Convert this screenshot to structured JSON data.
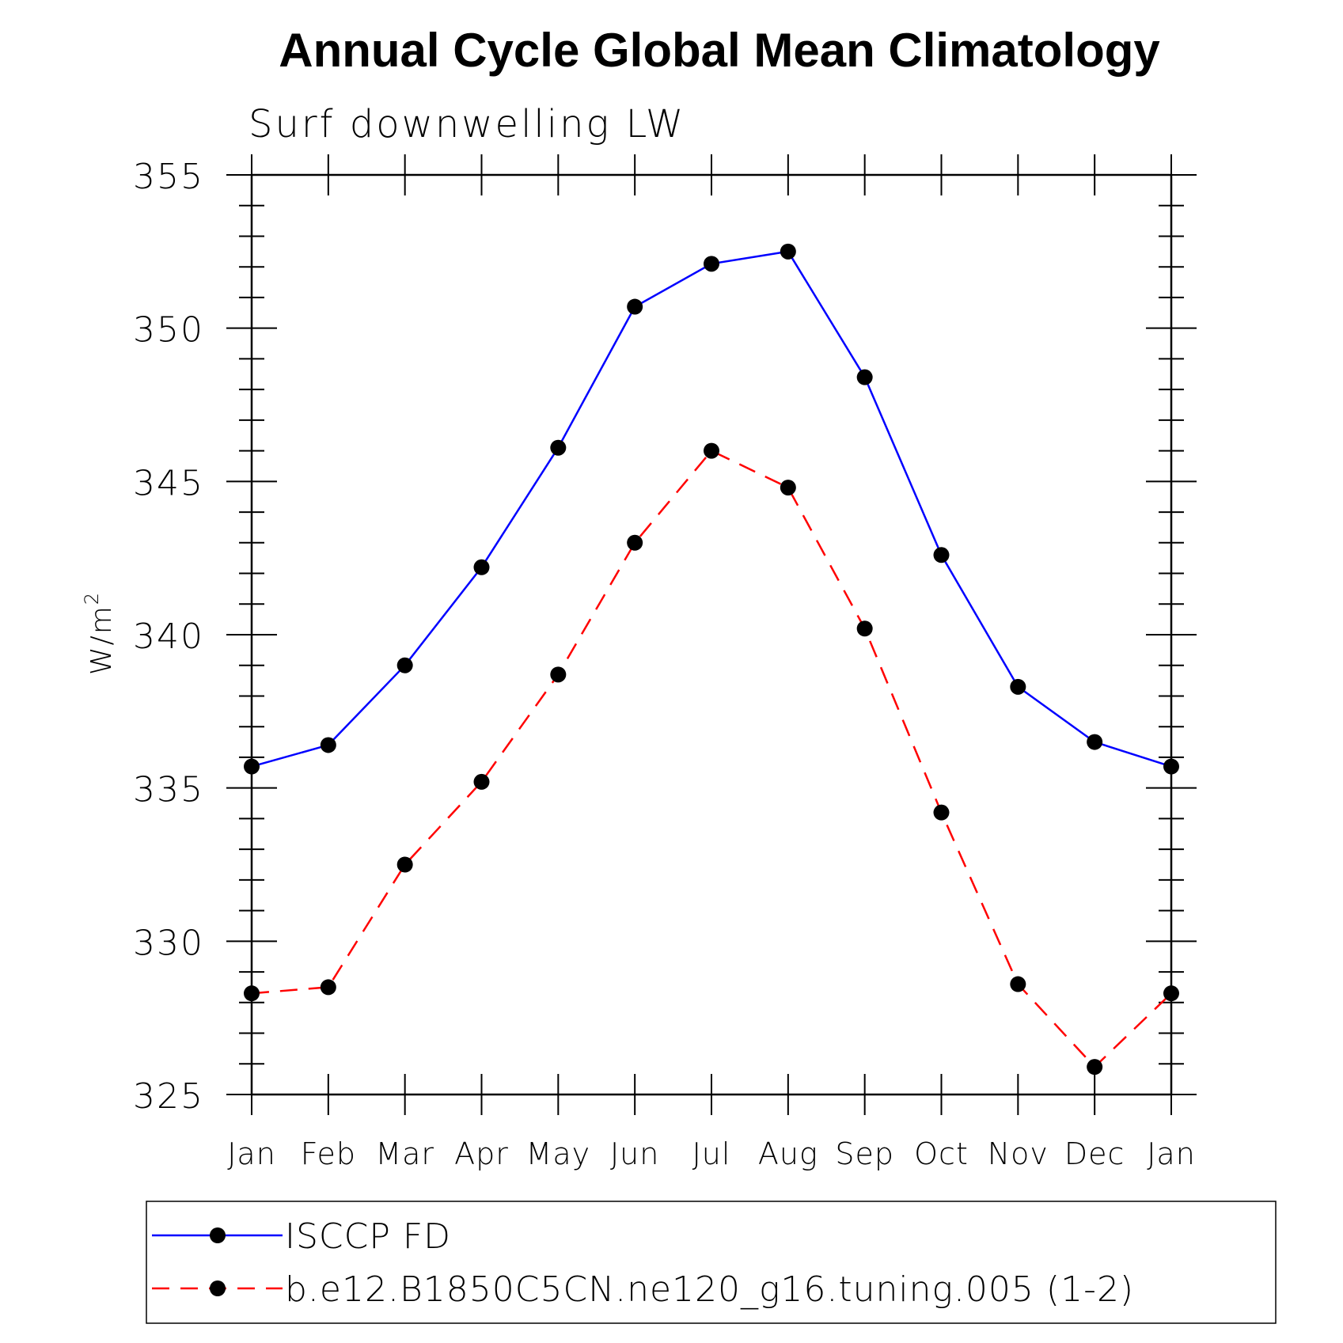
{
  "chart_data": {
    "type": "line",
    "title": "Annual Cycle Global Mean Climatology",
    "subtitle": "Surf downwelling LW",
    "ylabel": "W/m",
    "ylabel_superscript": "2",
    "ylim": [
      325,
      355
    ],
    "yticks": [
      "325",
      "330",
      "335",
      "340",
      "345",
      "350",
      "355"
    ],
    "categories": [
      "Jan",
      "Feb",
      "Mar",
      "Apr",
      "May",
      "Jun",
      "Jul",
      "Aug",
      "Sep",
      "Oct",
      "Nov",
      "Dec",
      "Jan"
    ],
    "series": [
      {
        "name": "ISCCP FD",
        "color": "#0000ff",
        "dash": "solid",
        "values": [
          335.7,
          336.4,
          339.0,
          342.2,
          346.1,
          350.7,
          352.1,
          352.5,
          348.4,
          342.6,
          338.3,
          336.5,
          335.7
        ]
      },
      {
        "name": "b.e12.B1850C5CN.ne120_g16.tuning.005 (1-2)",
        "color": "#ff0000",
        "dash": "dashed",
        "values": [
          328.3,
          328.5,
          332.5,
          335.2,
          338.7,
          343.0,
          346.0,
          344.8,
          340.2,
          334.2,
          328.6,
          325.9,
          328.3
        ]
      }
    ],
    "legend_position": "bottom",
    "grid": false
  }
}
